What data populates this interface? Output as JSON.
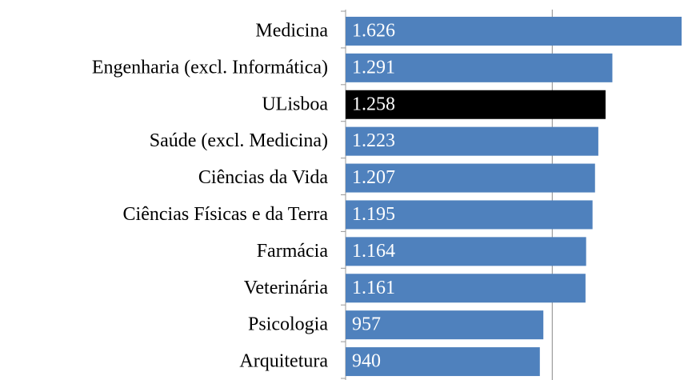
{
  "chart_data": {
    "type": "bar",
    "orientation": "horizontal",
    "categories": [
      "Medicina",
      "Engenharia (excl. Informática)",
      "ULisboa",
      "Saúde (excl. Medicina)",
      "Ciências da Vida",
      "Ciências Físicas e da Terra",
      "Farmácia",
      "Veterinária",
      "Psicologia",
      "Arquitetura"
    ],
    "values": [
      1626,
      1291,
      1258,
      1223,
      1207,
      1195,
      1164,
      1161,
      957,
      940
    ],
    "value_labels": [
      "1.626",
      "1.291",
      "1.258",
      "1.223",
      "1.207",
      "1.195",
      "1.164",
      "1.161",
      "957",
      "940"
    ],
    "colors": [
      "#4f81bd",
      "#4f81bd",
      "#000000",
      "#4f81bd",
      "#4f81bd",
      "#4f81bd",
      "#4f81bd",
      "#4f81bd",
      "#4f81bd",
      "#4f81bd"
    ],
    "xlim": [
      0,
      1626
    ],
    "xticks": [
      0,
      1000
    ],
    "grid": true
  }
}
